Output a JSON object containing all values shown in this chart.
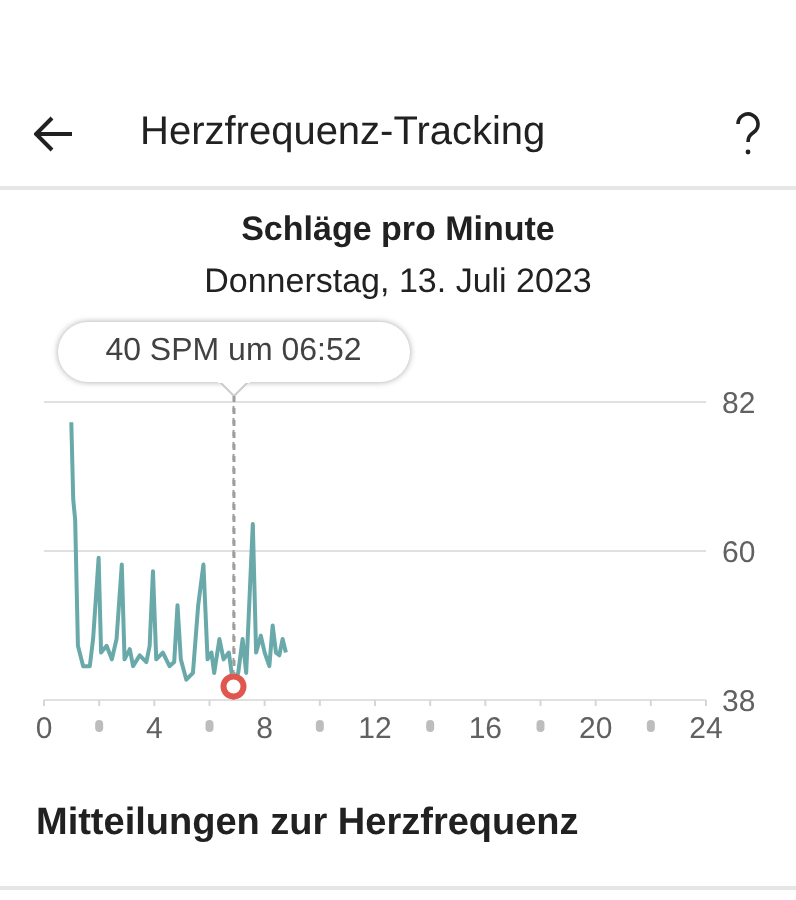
{
  "chart_data": {
    "type": "line",
    "title": "Schläge pro Minute",
    "subtitle": "Donnerstag, 13. Juli 2023",
    "x": [
      0.99,
      1.06,
      1.13,
      1.23,
      1.42,
      1.66,
      1.78,
      1.98,
      2.07,
      2.27,
      2.46,
      2.63,
      2.82,
      2.92,
      3.11,
      3.23,
      3.47,
      3.71,
      3.83,
      3.95,
      4.07,
      4.31,
      4.55,
      4.72,
      4.84,
      4.96,
      5.16,
      5.4,
      5.59,
      5.78,
      5.93,
      6.07,
      6.17,
      6.36,
      6.51,
      6.7,
      6.87,
      7.04,
      7.2,
      7.33,
      7.57,
      7.69,
      7.86,
      8.0,
      8.17,
      8.29,
      8.41,
      8.53,
      8.65,
      8.77
    ],
    "values": [
      79,
      67.6,
      64.6,
      46,
      43,
      43,
      47,
      59,
      45,
      46,
      44,
      47,
      58,
      44,
      45.5,
      43,
      44.6,
      43.6,
      46,
      57,
      44,
      45,
      43,
      43.6,
      52,
      44,
      41,
      42,
      52,
      58,
      44,
      45,
      42,
      47,
      44,
      45,
      40,
      42,
      47,
      42,
      64,
      45,
      47.5,
      45,
      43,
      49,
      45,
      44.6,
      47,
      45
    ],
    "color": "#6aa9aa",
    "xlim": [
      0,
      24
    ],
    "ylim": [
      38,
      82
    ],
    "xticks": [
      0,
      {
        "value": 2,
        "label": null
      },
      4,
      {
        "value": 6,
        "label": null
      },
      8,
      {
        "value": 10,
        "label": null
      },
      12,
      {
        "value": 14,
        "label": null
      },
      16,
      {
        "value": 18,
        "label": null
      },
      20,
      {
        "value": 22,
        "label": null
      },
      24
    ],
    "yticks": [
      38,
      60,
      82
    ],
    "grid": "y",
    "ref_lines": [
      {
        "axis": "x",
        "value": 6.87,
        "line_style": "dashed",
        "color": "#9e9e9e"
      }
    ],
    "annotations": [
      "Herzfrequenz-Tracking",
      {
        "text": "40 SPM um 06:52",
        "x": 6.87,
        "y": 40
      },
      "Mitteilungen zur Herzfrequenz"
    ]
  }
}
